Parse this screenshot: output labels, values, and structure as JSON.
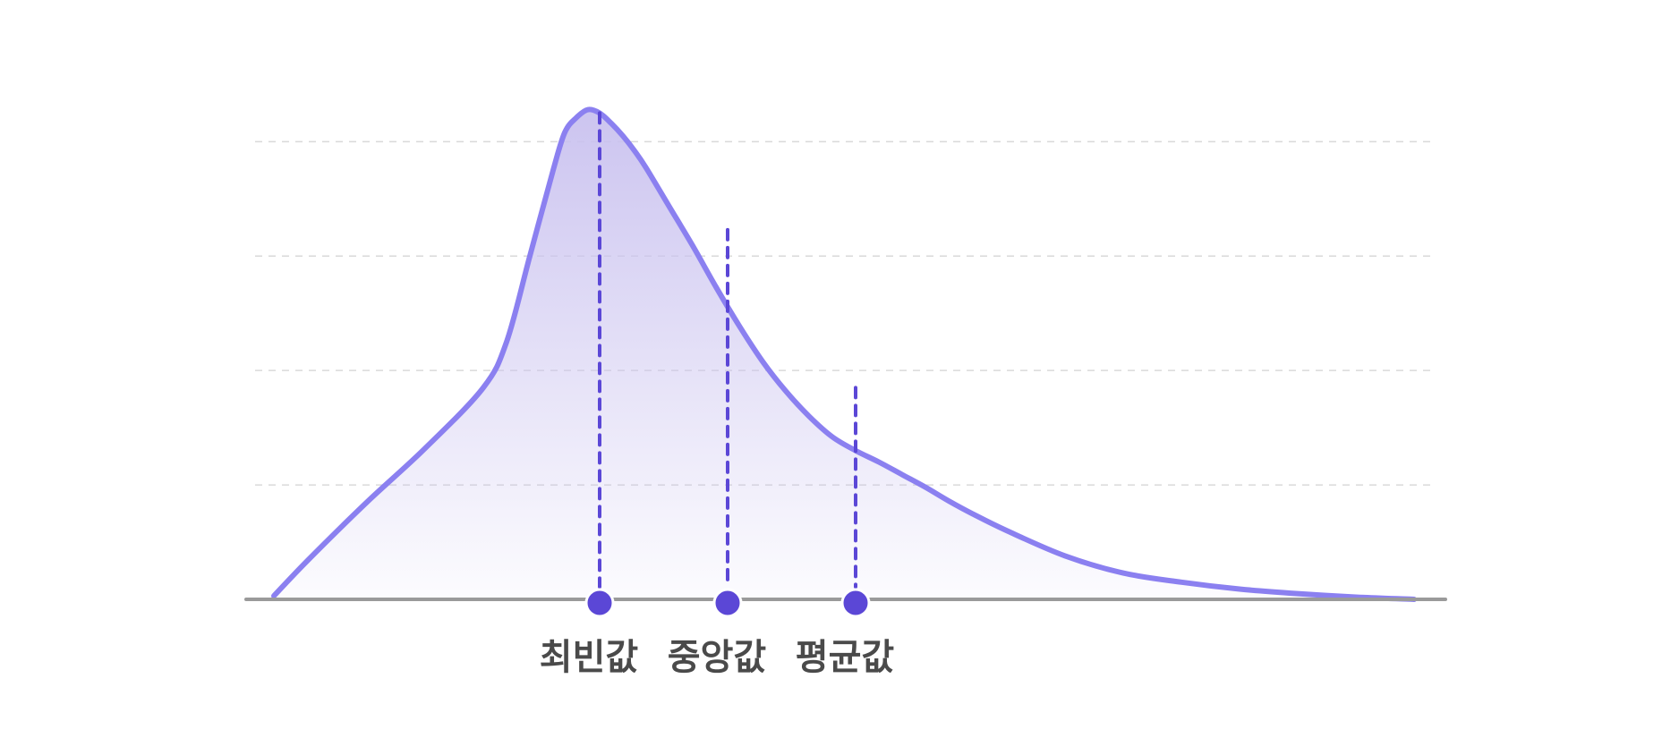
{
  "chart_data": {
    "type": "area",
    "title": "",
    "xlabel": "",
    "ylabel": "",
    "xlim": [
      0,
      100
    ],
    "ylim": [
      0,
      4.3
    ],
    "grid": true,
    "grid_lines": [
      1,
      2,
      3,
      4
    ],
    "x": [
      2,
      5,
      10,
      15,
      20,
      22,
      24,
      26,
      27,
      28,
      29,
      30,
      31,
      32,
      33,
      34,
      36,
      38,
      40,
      42,
      44,
      46,
      48,
      50,
      52,
      54,
      56,
      58,
      60,
      62,
      65,
      70,
      75,
      80,
      85,
      90,
      95,
      100
    ],
    "values": [
      0.03,
      0.35,
      0.85,
      1.32,
      1.85,
      2.25,
      3.0,
      3.75,
      4.08,
      4.21,
      4.28,
      4.25,
      4.16,
      4.05,
      3.92,
      3.77,
      3.43,
      3.09,
      2.73,
      2.39,
      2.08,
      1.82,
      1.6,
      1.42,
      1.3,
      1.2,
      1.09,
      0.98,
      0.86,
      0.75,
      0.6,
      0.38,
      0.23,
      0.15,
      0.09,
      0.05,
      0.02,
      0.0
    ],
    "markers": [
      {
        "label": "최빈값",
        "x": 30.0,
        "y": 4.25
      },
      {
        "label": "중앙값",
        "x": 41.0,
        "y": 3.23
      },
      {
        "label": "평균값",
        "x": 52.0,
        "y": 1.85
      }
    ],
    "colors": {
      "curve": "#8B80F0",
      "fill_top": "#C9C1EF",
      "marker": "#5B47D6",
      "dashed": "#5B47D6",
      "baseline": "#9A9A9A",
      "grid": "#D9D9D9",
      "label": "#4A4A4A"
    }
  }
}
